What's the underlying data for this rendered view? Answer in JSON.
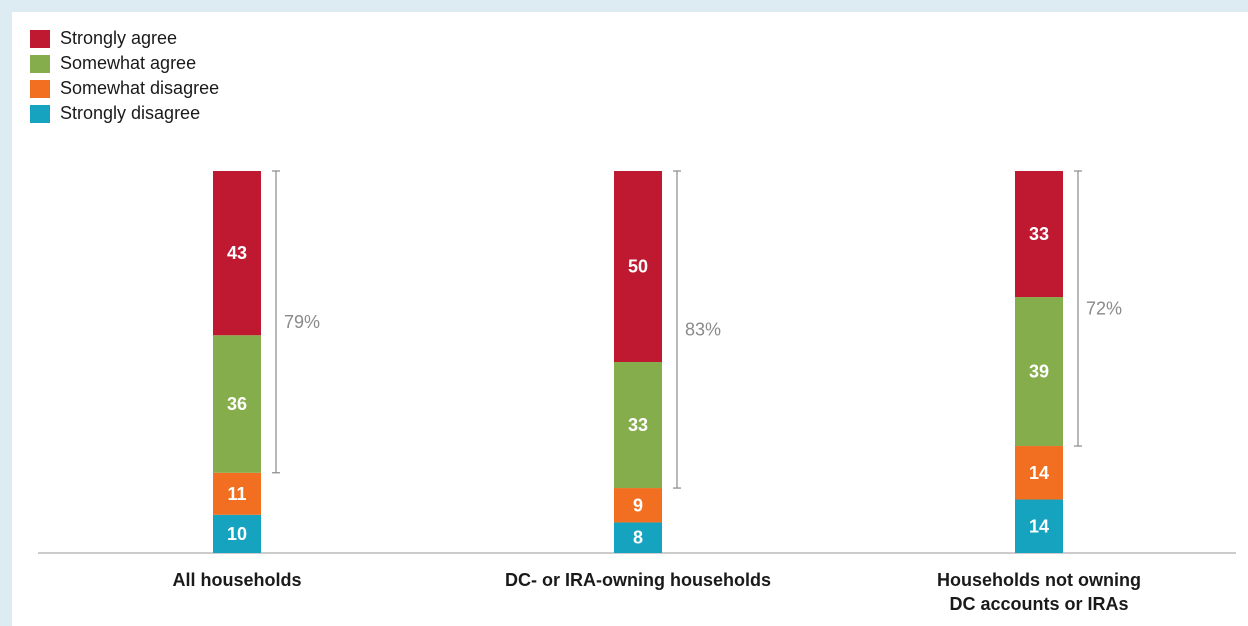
{
  "chart_data": {
    "type": "bar",
    "stacked": true,
    "categories": [
      "All households",
      "DC- or IRA-owning households",
      "Households not owning\nDC accounts or IRAs"
    ],
    "series": [
      {
        "name": "Strongly disagree",
        "color": "#16a3bf",
        "values": [
          10,
          8,
          14
        ]
      },
      {
        "name": "Somewhat disagree",
        "color": "#f26f21",
        "values": [
          11,
          9,
          14
        ]
      },
      {
        "name": "Somewhat agree",
        "color": "#86ad4c",
        "values": [
          36,
          33,
          39
        ]
      },
      {
        "name": "Strongly agree",
        "color": "#be1931",
        "values": [
          43,
          50,
          33
        ]
      }
    ],
    "agree_totals": [
      "79%",
      "83%",
      "72%"
    ],
    "legend_order": [
      "Strongly agree",
      "Somewhat agree",
      "Somewhat disagree",
      "Strongly disagree"
    ],
    "legend_position": "top-left",
    "ylim": [
      0,
      100
    ],
    "grid": false
  }
}
